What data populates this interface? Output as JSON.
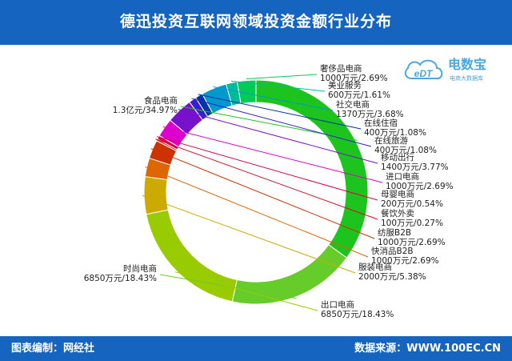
{
  "title": "德迅投资互联网领域投资金额行业分布",
  "footer": {
    "left": "图表编制：网经社",
    "right": "数据来源：WWW.100EC.CN"
  },
  "logo": {
    "mark": "eDT",
    "name": "电数宝",
    "tagline": "电商大数据库"
  },
  "colors": {
    "header_bg": "#1565c0",
    "logo": "#4aa8e0"
  },
  "chart_data": {
    "type": "pie",
    "style": "donut",
    "slices": [
      {
        "name": "食品电商",
        "amount": "1.3亿元",
        "percent": 34.97,
        "value_label": "1.3亿元/34.97%",
        "color": "#1ec41e"
      },
      {
        "name": "时尚电商",
        "amount": "6850万元",
        "percent": 18.43,
        "value_label": "6850万元/18.43%",
        "color": "#66cc2a"
      },
      {
        "name": "出口电商",
        "amount": "6850万元",
        "percent": 18.43,
        "value_label": "6850万元/18.43%",
        "color": "#99cc00"
      },
      {
        "name": "服装电商",
        "amount": "2000万元",
        "percent": 5.38,
        "value_label": "2000万元/5.38%",
        "color": "#ccaa00"
      },
      {
        "name": "快消品B2B",
        "amount": "1000万元",
        "percent": 2.69,
        "value_label": "1000万元/2.69%",
        "color": "#dd6600"
      },
      {
        "name": "纺服B2B",
        "amount": "1000万元",
        "percent": 2.69,
        "value_label": "1000万元/2.69%",
        "color": "#cc3300"
      },
      {
        "name": "餐饮外卖",
        "amount": "100万元",
        "percent": 0.27,
        "value_label": "100万元/0.27%",
        "color": "#cc1122"
      },
      {
        "name": "母婴电商",
        "amount": "200万元",
        "percent": 0.54,
        "value_label": "200万元/0.54%",
        "color": "#dd0044"
      },
      {
        "name": "进口电商",
        "amount": "1000万元",
        "percent": 2.69,
        "value_label": "1000万元/2.69%",
        "color": "#dd00cc"
      },
      {
        "name": "移动出行",
        "amount": "1400万元",
        "percent": 3.77,
        "value_label": "1400万元/3.77%",
        "color": "#7711cc"
      },
      {
        "name": "在线旅游",
        "amount": "400万元",
        "percent": 1.08,
        "value_label": "400万元/1.08%",
        "color": "#3322cc"
      },
      {
        "name": "在线住宿",
        "amount": "400万元",
        "percent": 1.08,
        "value_label": "400万元/1.08%",
        "color": "#0033aa"
      },
      {
        "name": "社交电商",
        "amount": "1370万元",
        "percent": 3.68,
        "value_label": "1370万元/3.68%",
        "color": "#0099cc"
      },
      {
        "name": "美业服务",
        "amount": "600万元",
        "percent": 1.61,
        "value_label": "600万元/1.61%",
        "color": "#00bb99"
      },
      {
        "name": "奢侈品电商",
        "amount": "1000万元",
        "percent": 2.69,
        "value_label": "1000万元/2.69%",
        "color": "#00cc55"
      }
    ]
  }
}
